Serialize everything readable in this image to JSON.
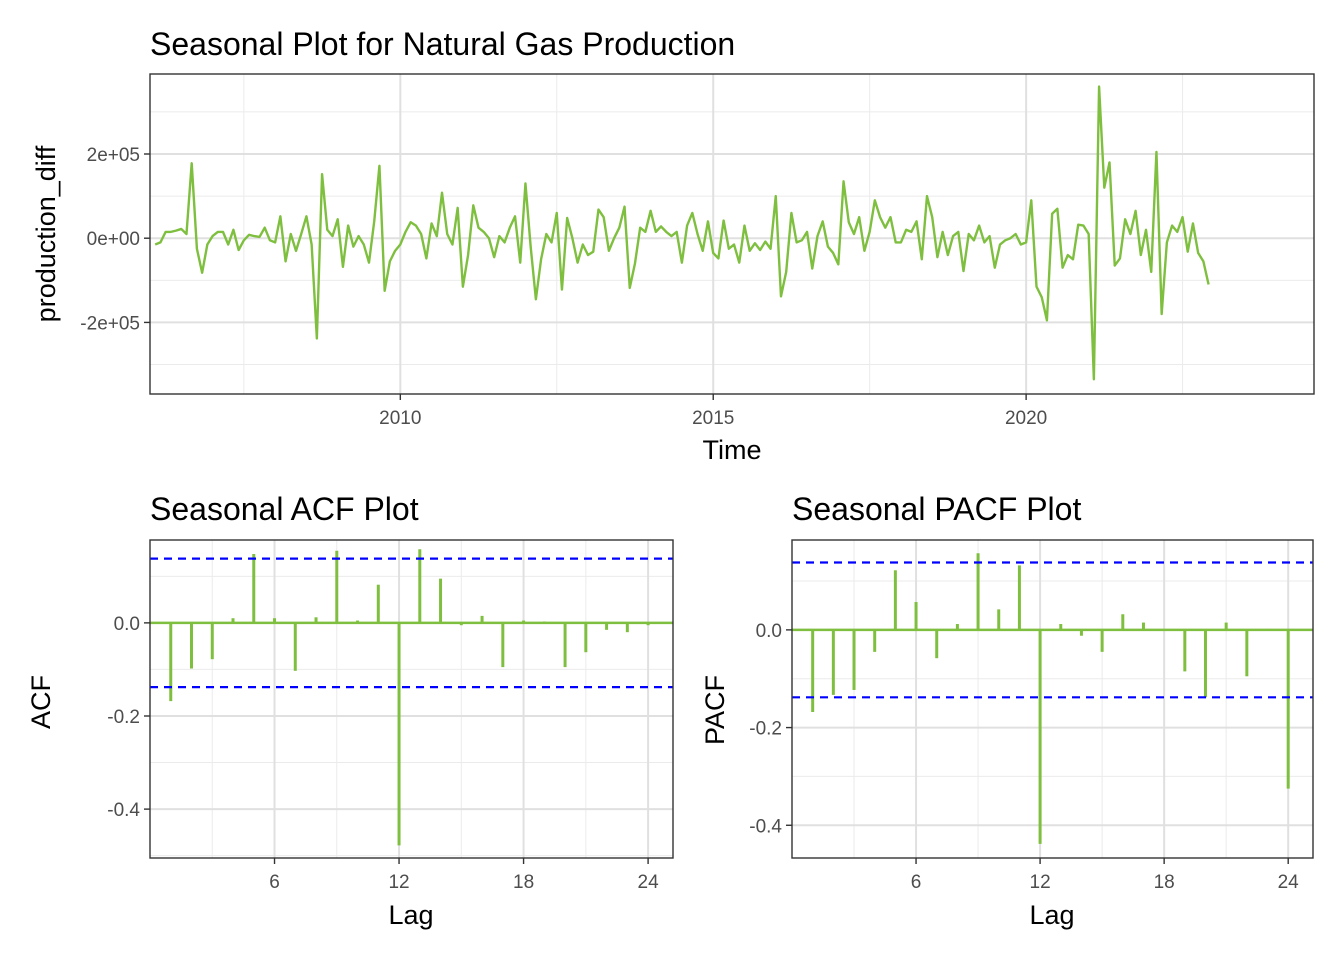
{
  "chart_data": [
    {
      "id": "ts",
      "type": "line",
      "title": "Seasonal Plot for Natural Gas Production",
      "xlabel": "Time",
      "ylabel": "production_diff",
      "xlim": [
        2006.0,
        2024.6
      ],
      "ylim": [
        -370000,
        390000
      ],
      "x_ticks": [
        2010,
        2015,
        2020
      ],
      "x_tick_labels": [
        "2010",
        "2015",
        "2020"
      ],
      "y_ticks": [
        -200000,
        0,
        200000
      ],
      "y_tick_labels": [
        "-2e+05",
        "0e+00",
        "2e+05"
      ],
      "grid": true,
      "line_color": "#7fbf3f",
      "start": 2006.083,
      "step": 0.08333,
      "values": [
        -15000,
        -10000,
        15000,
        15000,
        18000,
        22000,
        10000,
        178000,
        -25000,
        -82000,
        -15000,
        5000,
        15000,
        15000,
        -15000,
        20000,
        -28000,
        -5000,
        8000,
        5000,
        3000,
        25000,
        -5000,
        -10000,
        52000,
        -55000,
        10000,
        -30000,
        10000,
        52000,
        -15000,
        -238000,
        152000,
        20000,
        5000,
        45000,
        -68000,
        30000,
        -20000,
        5000,
        -15000,
        -58000,
        40000,
        172000,
        -125000,
        -55000,
        -30000,
        -15000,
        15000,
        38000,
        30000,
        10000,
        -48000,
        35000,
        5000,
        108000,
        10000,
        -15000,
        72000,
        -115000,
        -40000,
        78000,
        25000,
        15000,
        0,
        -45000,
        5000,
        -10000,
        25000,
        52000,
        -58000,
        130000,
        -20000,
        -145000,
        -50000,
        10000,
        -10000,
        60000,
        -122000,
        48000,
        0,
        -58000,
        -15000,
        -40000,
        -32000,
        68000,
        50000,
        -30000,
        0,
        25000,
        75000,
        -118000,
        -60000,
        25000,
        15000,
        65000,
        15000,
        28000,
        15000,
        5000,
        15000,
        -58000,
        30000,
        60000,
        10000,
        -30000,
        40000,
        -35000,
        -48000,
        42000,
        -25000,
        -15000,
        -58000,
        30000,
        -30000,
        -12000,
        -28000,
        -8000,
        -25000,
        100000,
        -138000,
        -80000,
        60000,
        -10000,
        -5000,
        15000,
        -72000,
        5000,
        40000,
        -20000,
        -35000,
        -62000,
        135000,
        38000,
        10000,
        50000,
        -30000,
        15000,
        90000,
        50000,
        25000,
        50000,
        -10000,
        -10000,
        20000,
        15000,
        40000,
        -50000,
        100000,
        50000,
        -45000,
        15000,
        -40000,
        5000,
        15000,
        -78000,
        10000,
        -5000,
        30000,
        -10000,
        5000,
        -70000,
        -15000,
        -5000,
        0,
        10000,
        -15000,
        -10000,
        90000,
        -115000,
        -140000,
        -195000,
        58000,
        70000,
        -70000,
        -40000,
        -50000,
        32000,
        30000,
        10000,
        -335000,
        360000,
        120000,
        180000,
        -65000,
        -48000,
        45000,
        10000,
        65000,
        -40000,
        20000,
        -80000,
        205000,
        -180000,
        -10000,
        30000,
        15000,
        50000,
        -32000,
        35000,
        -35000,
        -55000,
        -110000
      ]
    },
    {
      "id": "acf",
      "type": "bar",
      "title": "Seasonal ACF Plot",
      "xlabel": "Lag",
      "ylabel": "ACF",
      "xlim": [
        0,
        25.2
      ],
      "ylim": [
        -0.505,
        0.178
      ],
      "x_ticks": [
        6,
        12,
        18,
        24
      ],
      "x_tick_labels": [
        "6",
        "12",
        "18",
        "24"
      ],
      "y_ticks": [
        -0.4,
        -0.2,
        0.0
      ],
      "y_tick_labels": [
        "-0.4",
        "-0.2",
        "0.0"
      ],
      "grid": true,
      "bar_color": "#7fbf3f",
      "confidence_bound": 0.138,
      "confidence_color": "#0000ff",
      "lags": [
        1,
        2,
        3,
        4,
        5,
        6,
        7,
        8,
        9,
        10,
        11,
        12,
        13,
        14,
        15,
        16,
        17,
        18,
        19,
        20,
        21,
        22,
        23,
        24
      ],
      "values": [
        -0.168,
        -0.098,
        -0.078,
        0.01,
        0.148,
        0.01,
        -0.103,
        0.012,
        0.155,
        0.005,
        0.082,
        -0.478,
        0.158,
        0.095,
        -0.005,
        0.015,
        -0.095,
        0.005,
        0.003,
        -0.095,
        -0.063,
        -0.015,
        -0.02,
        -0.005
      ]
    },
    {
      "id": "pacf",
      "type": "bar",
      "title": "Seasonal PACF Plot",
      "xlabel": "Lag",
      "ylabel": "PACF",
      "xlim": [
        0,
        25.2
      ],
      "ylim": [
        -0.467,
        0.184
      ],
      "x_ticks": [
        6,
        12,
        18,
        24
      ],
      "x_tick_labels": [
        "6",
        "12",
        "18",
        "24"
      ],
      "y_ticks": [
        -0.4,
        -0.2,
        0.0
      ],
      "y_tick_labels": [
        "-0.4",
        "-0.2",
        "0.0"
      ],
      "grid": true,
      "bar_color": "#7fbf3f",
      "confidence_bound": 0.138,
      "confidence_color": "#0000ff",
      "lags": [
        1,
        2,
        3,
        4,
        5,
        6,
        7,
        8,
        9,
        10,
        11,
        12,
        13,
        14,
        15,
        16,
        17,
        18,
        19,
        20,
        21,
        22,
        23,
        24
      ],
      "values": [
        -0.168,
        -0.133,
        -0.123,
        -0.045,
        0.122,
        0.057,
        -0.058,
        0.012,
        0.157,
        0.042,
        0.132,
        -0.438,
        0.012,
        -0.012,
        -0.045,
        0.032,
        0.015,
        0.0,
        -0.085,
        -0.138,
        0.015,
        -0.095,
        0.002,
        -0.325
      ]
    }
  ]
}
